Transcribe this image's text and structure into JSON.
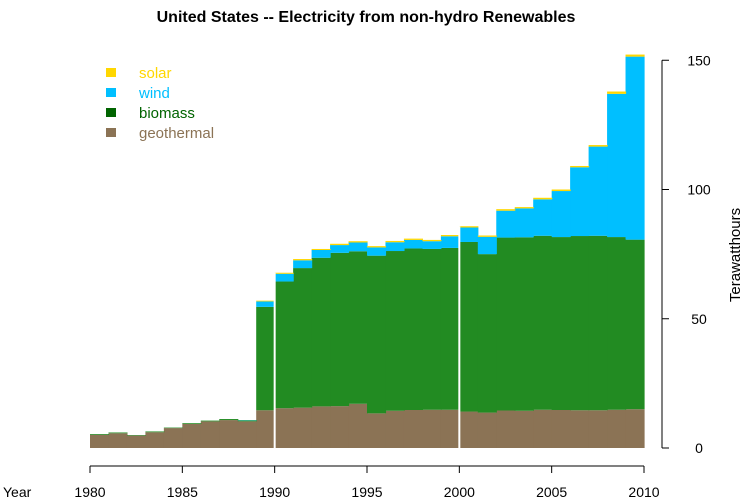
{
  "chart_data": {
    "type": "area",
    "title": "United States -- Electricity from non-hydro Renewables",
    "xlabel": "Year",
    "ylabel": "Terawatthours",
    "x_ticks": [
      1980,
      1985,
      1990,
      1995,
      2000,
      2005,
      2010
    ],
    "y_ticks": [
      0,
      50,
      100,
      150
    ],
    "ylim": [
      0,
      155
    ],
    "xlim": [
      1980,
      2010
    ],
    "y_axis_side": "right",
    "legend_position": "top-left",
    "x": [
      1980,
      1981,
      1982,
      1983,
      1984,
      1985,
      1986,
      1987,
      1988,
      1989,
      1990,
      1991,
      1992,
      1993,
      1994,
      1995,
      1996,
      1997,
      1998,
      1999,
      2000,
      2001,
      2002,
      2003,
      2004,
      2005,
      2006,
      2007,
      2008,
      2009
    ],
    "series": [
      {
        "name": "geothermal",
        "color": "#8b7355",
        "values": [
          5.1,
          5.7,
          4.8,
          6.1,
          7.7,
          9.3,
          10.3,
          10.8,
          10.3,
          14.6,
          15.4,
          15.6,
          16.1,
          16.2,
          17.1,
          13.4,
          14.4,
          14.7,
          14.8,
          14.8,
          14.1,
          13.7,
          14.5,
          14.4,
          14.8,
          14.7,
          14.6,
          14.6,
          14.8,
          15.0
        ]
      },
      {
        "name": "biomass",
        "color": "#228b22",
        "values": [
          0.3,
          0.3,
          0.2,
          0.3,
          0.2,
          0.3,
          0.3,
          0.4,
          0.4,
          40.0,
          49.0,
          54.0,
          57.5,
          59.3,
          59.0,
          61.0,
          61.8,
          62.5,
          62.2,
          62.6,
          65.6,
          61.3,
          66.9,
          67.1,
          67.3,
          66.9,
          67.4,
          67.5,
          66.8,
          65.6
        ]
      },
      {
        "name": "wind",
        "color": "#00bfff",
        "values": [
          0,
          0,
          0,
          0,
          0,
          0,
          0,
          0,
          0.1,
          2.1,
          3.0,
          3.0,
          3.0,
          3.0,
          3.4,
          3.2,
          3.4,
          3.3,
          3.0,
          4.5,
          5.6,
          6.7,
          10.4,
          11.2,
          14.1,
          17.8,
          26.6,
          34.5,
          55.4,
          70.8
        ]
      },
      {
        "name": "solar",
        "color": "#ffd700",
        "values": [
          0,
          0,
          0,
          0,
          0,
          0,
          0,
          0,
          0,
          0.3,
          0.4,
          0.5,
          0.4,
          0.5,
          0.5,
          0.5,
          0.5,
          0.5,
          0.5,
          0.5,
          0.5,
          0.5,
          0.6,
          0.5,
          0.6,
          0.6,
          0.5,
          0.6,
          0.9,
          0.8
        ]
      }
    ],
    "vertical_lines": [
      1990,
      2000
    ],
    "grid": false
  },
  "legend": {
    "items": [
      {
        "label": "solar",
        "color": "#ffd700",
        "text_color": "#ffd700"
      },
      {
        "label": "wind",
        "color": "#00bfff",
        "text_color": "#00bfff"
      },
      {
        "label": "biomass",
        "color": "#006400",
        "text_color": "#006400"
      },
      {
        "label": "geothermal",
        "color": "#8b7355",
        "text_color": "#8b7355"
      }
    ]
  }
}
